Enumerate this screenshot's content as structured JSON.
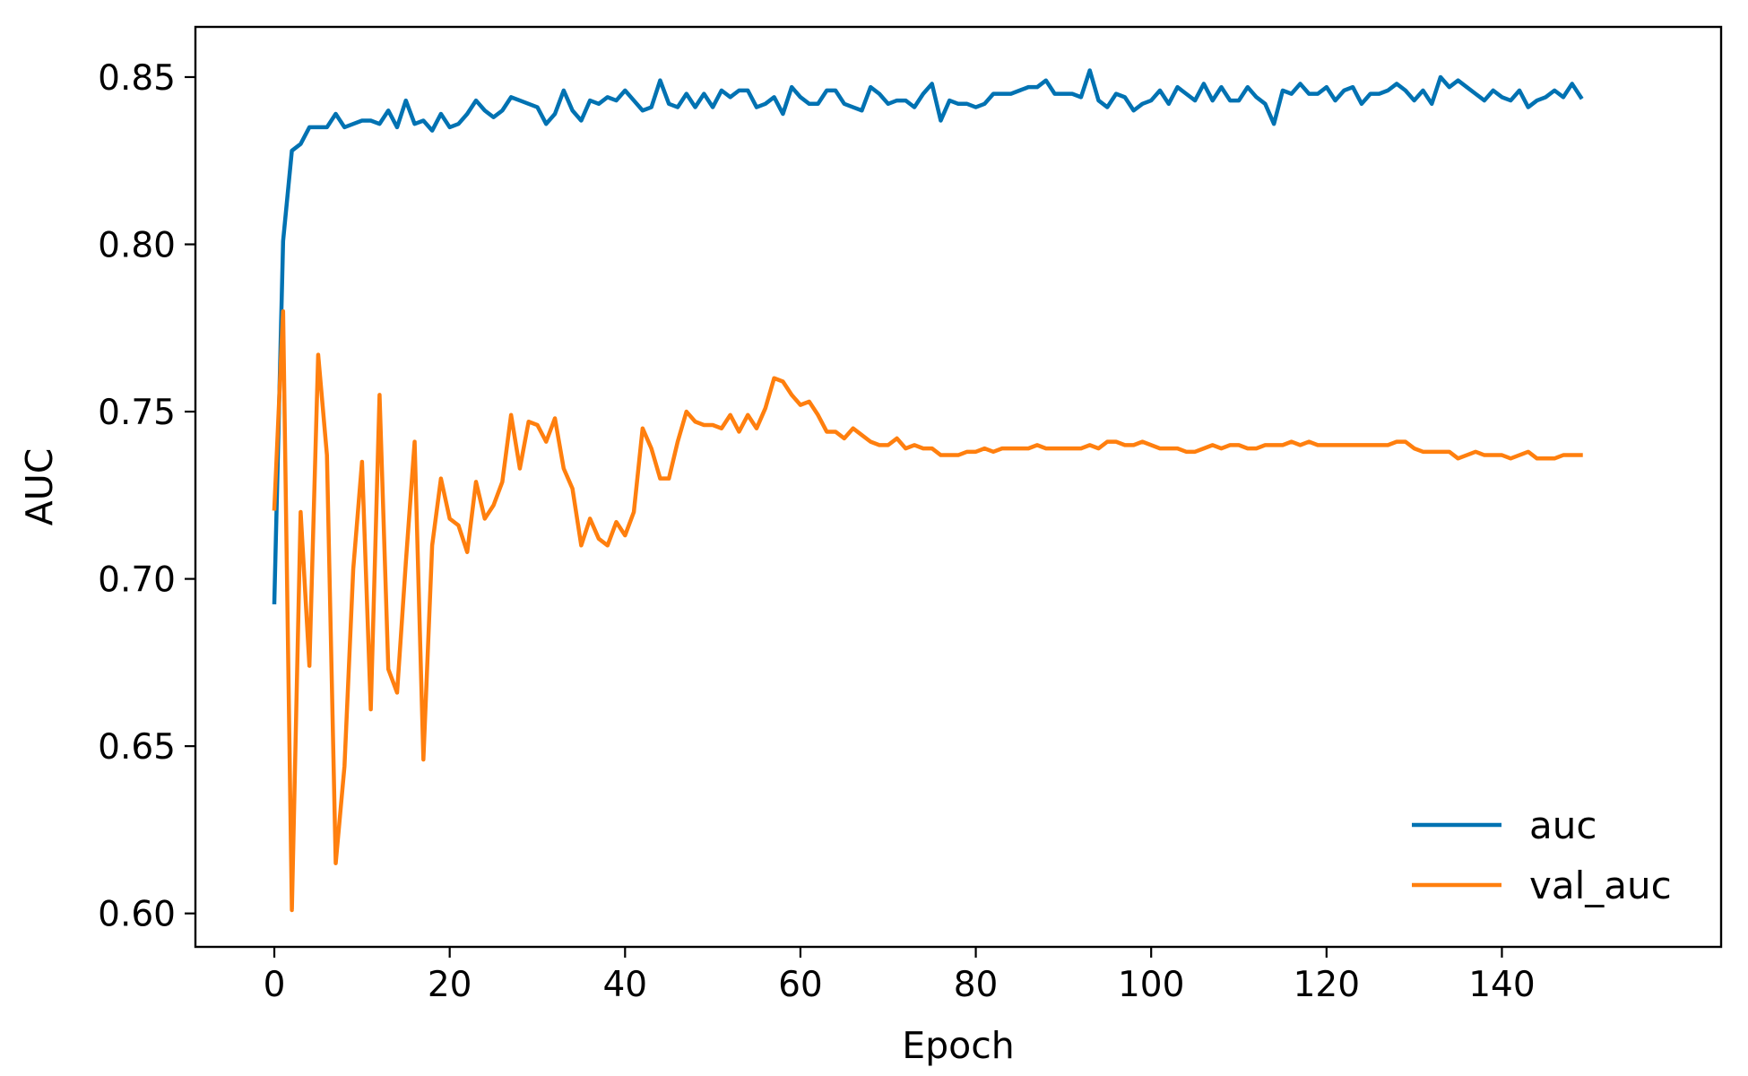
{
  "chart_data": {
    "type": "line",
    "title": "",
    "xlabel": "Epoch",
    "ylabel": "AUC",
    "xlim": [
      -9,
      165
    ],
    "ylim": [
      0.59,
      0.865
    ],
    "xticks": [
      0,
      20,
      40,
      60,
      80,
      100,
      120,
      140
    ],
    "xtick_labels": [
      "0",
      "20",
      "40",
      "60",
      "80",
      "100",
      "120",
      "140"
    ],
    "yticks": [
      0.6,
      0.65,
      0.7,
      0.75,
      0.8,
      0.85
    ],
    "ytick_labels": [
      "0.60",
      "0.65",
      "0.70",
      "0.75",
      "0.80",
      "0.85"
    ],
    "grid": false,
    "legend": {
      "position": "lower-right"
    },
    "x": [
      0,
      1,
      2,
      3,
      4,
      5,
      6,
      7,
      8,
      9,
      10,
      11,
      12,
      13,
      14,
      15,
      16,
      17,
      18,
      19,
      20,
      21,
      22,
      23,
      24,
      25,
      26,
      27,
      28,
      29,
      30,
      31,
      32,
      33,
      34,
      35,
      36,
      37,
      38,
      39,
      40,
      41,
      42,
      43,
      44,
      45,
      46,
      47,
      48,
      49,
      50,
      51,
      52,
      53,
      54,
      55,
      56,
      57,
      58,
      59,
      60,
      61,
      62,
      63,
      64,
      65,
      66,
      67,
      68,
      69,
      70,
      71,
      72,
      73,
      74,
      75,
      76,
      77,
      78,
      79,
      80,
      81,
      82,
      83,
      84,
      85,
      86,
      87,
      88,
      89,
      90,
      91,
      92,
      93,
      94,
      95,
      96,
      97,
      98,
      99,
      100,
      101,
      102,
      103,
      104,
      105,
      106,
      107,
      108,
      109,
      110,
      111,
      112,
      113,
      114,
      115,
      116,
      117,
      118,
      119,
      120,
      121,
      122,
      123,
      124,
      125,
      126,
      127,
      128,
      129,
      130,
      131,
      132,
      133,
      134,
      135,
      136,
      137,
      138,
      139,
      140,
      141,
      142,
      143,
      144,
      145,
      146,
      147,
      148,
      149
    ],
    "series": [
      {
        "name": "auc",
        "color": "#0072b2",
        "values": [
          0.693,
          0.801,
          0.828,
          0.83,
          0.835,
          0.835,
          0.835,
          0.839,
          0.835,
          0.836,
          0.837,
          0.837,
          0.836,
          0.84,
          0.835,
          0.843,
          0.836,
          0.837,
          0.834,
          0.839,
          0.835,
          0.836,
          0.839,
          0.843,
          0.84,
          0.838,
          0.84,
          0.844,
          0.843,
          0.842,
          0.841,
          0.836,
          0.839,
          0.846,
          0.84,
          0.837,
          0.843,
          0.842,
          0.844,
          0.843,
          0.846,
          0.843,
          0.84,
          0.841,
          0.849,
          0.842,
          0.841,
          0.845,
          0.841,
          0.845,
          0.841,
          0.846,
          0.844,
          0.846,
          0.846,
          0.841,
          0.842,
          0.844,
          0.839,
          0.847,
          0.844,
          0.842,
          0.842,
          0.846,
          0.846,
          0.842,
          0.841,
          0.84,
          0.847,
          0.845,
          0.842,
          0.843,
          0.843,
          0.841,
          0.845,
          0.848,
          0.837,
          0.843,
          0.842,
          0.842,
          0.841,
          0.842,
          0.845,
          0.845,
          0.845,
          0.846,
          0.847,
          0.847,
          0.849,
          0.845,
          0.845,
          0.845,
          0.844,
          0.852,
          0.843,
          0.841,
          0.845,
          0.844,
          0.84,
          0.842,
          0.843,
          0.846,
          0.842,
          0.847,
          0.845,
          0.843,
          0.848,
          0.843,
          0.847,
          0.843,
          0.843,
          0.847,
          0.844,
          0.842,
          0.836,
          0.846,
          0.845,
          0.848,
          0.845,
          0.845,
          0.847,
          0.843,
          0.846,
          0.847,
          0.842,
          0.845,
          0.845,
          0.846,
          0.848,
          0.846,
          0.843,
          0.846,
          0.842,
          0.85,
          0.847,
          0.849,
          0.847,
          0.845,
          0.843,
          0.846,
          0.844,
          0.843,
          0.846,
          0.841,
          0.843,
          0.844,
          0.846,
          0.844,
          0.848,
          0.844
        ]
      },
      {
        "name": "val_auc",
        "color": "#ff7f0e",
        "values": [
          0.721,
          0.78,
          0.601,
          0.72,
          0.674,
          0.767,
          0.737,
          0.615,
          0.644,
          0.703,
          0.735,
          0.661,
          0.755,
          0.673,
          0.666,
          0.705,
          0.741,
          0.646,
          0.71,
          0.73,
          0.718,
          0.716,
          0.708,
          0.729,
          0.718,
          0.722,
          0.729,
          0.749,
          0.733,
          0.747,
          0.746,
          0.741,
          0.748,
          0.733,
          0.727,
          0.71,
          0.718,
          0.712,
          0.71,
          0.717,
          0.713,
          0.72,
          0.745,
          0.739,
          0.73,
          0.73,
          0.741,
          0.75,
          0.747,
          0.746,
          0.746,
          0.745,
          0.749,
          0.744,
          0.749,
          0.745,
          0.751,
          0.76,
          0.759,
          0.755,
          0.752,
          0.753,
          0.749,
          0.744,
          0.744,
          0.742,
          0.745,
          0.743,
          0.741,
          0.74,
          0.74,
          0.742,
          0.739,
          0.74,
          0.739,
          0.739,
          0.737,
          0.737,
          0.737,
          0.738,
          0.738,
          0.739,
          0.738,
          0.739,
          0.739,
          0.739,
          0.739,
          0.74,
          0.739,
          0.739,
          0.739,
          0.739,
          0.739,
          0.74,
          0.739,
          0.741,
          0.741,
          0.74,
          0.74,
          0.741,
          0.74,
          0.739,
          0.739,
          0.739,
          0.738,
          0.738,
          0.739,
          0.74,
          0.739,
          0.74,
          0.74,
          0.739,
          0.739,
          0.74,
          0.74,
          0.74,
          0.741,
          0.74,
          0.741,
          0.74,
          0.74,
          0.74,
          0.74,
          0.74,
          0.74,
          0.74,
          0.74,
          0.74,
          0.741,
          0.741,
          0.739,
          0.738,
          0.738,
          0.738,
          0.738,
          0.736,
          0.737,
          0.738,
          0.737,
          0.737,
          0.737,
          0.736,
          0.737,
          0.738,
          0.736,
          0.736,
          0.736,
          0.737,
          0.737,
          0.737
        ]
      }
    ]
  }
}
